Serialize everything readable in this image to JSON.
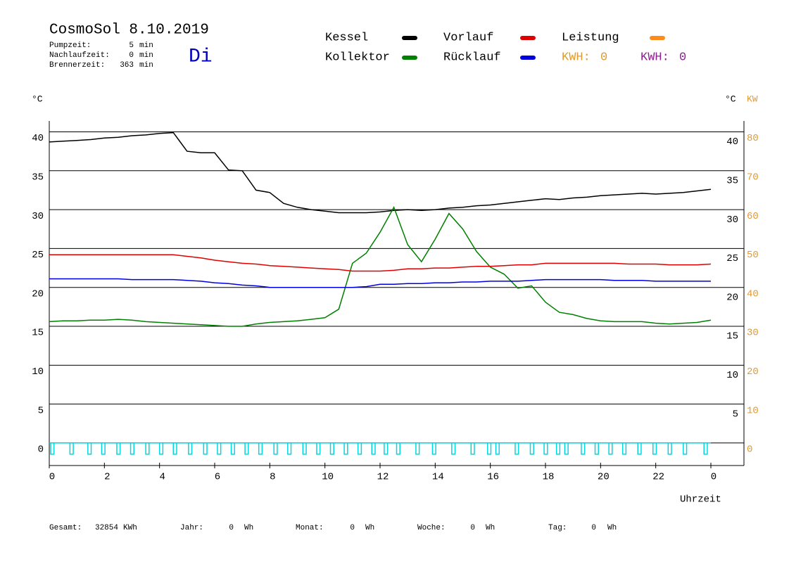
{
  "header": {
    "title": "CosmoSol 8.10.2019",
    "day": "Di",
    "info": [
      {
        "label": "Pumpzeit:",
        "value": 5,
        "unit": "min"
      },
      {
        "label": "Nachlaufzeit:",
        "value": 0,
        "unit": "min"
      },
      {
        "label": "Brennerzeit:",
        "value": 363,
        "unit": "min"
      }
    ]
  },
  "legend": {
    "extra": [
      {
        "name": "Leistung",
        "color": "#ff8c1a"
      }
    ],
    "kwh": [
      {
        "label": "KWH:",
        "value": 0,
        "color": "#e09a30"
      },
      {
        "label": "KWH:",
        "value": 0,
        "color": "#8b2090"
      }
    ]
  },
  "footer": [
    {
      "label": "Gesamt:",
      "value": 32854,
      "unit": "KWh"
    },
    {
      "label": "Jahr:",
      "value": 0,
      "unit": "Wh"
    },
    {
      "label": "Monat:",
      "value": 0,
      "unit": "Wh"
    },
    {
      "label": "Woche:",
      "value": 0,
      "unit": "Wh"
    },
    {
      "label": "Tag:",
      "value": 0,
      "unit": "Wh"
    }
  ],
  "chart_data": {
    "type": "line",
    "ylabel": "°C",
    "y2label_c": "°C",
    "y2label": "KW",
    "xlabel": "Uhrzeit",
    "grid": true,
    "x": [
      0,
      0.5,
      1,
      1.5,
      2,
      2.5,
      3,
      3.5,
      4,
      4.5,
      5,
      5.5,
      6,
      6.5,
      7,
      7.5,
      8,
      8.5,
      9,
      9.5,
      10,
      10.5,
      11,
      11.5,
      12,
      12.5,
      13,
      13.5,
      14,
      14.5,
      15,
      15.5,
      16,
      16.5,
      17,
      17.5,
      18,
      18.5,
      19,
      19.5,
      20,
      20.5,
      21,
      21.5,
      22,
      22.5,
      23,
      23.5,
      24
    ],
    "series": [
      {
        "name": "Kessel",
        "color": "#000000",
        "values": [
          38.7,
          38.8,
          38.9,
          39.0,
          39.2,
          39.3,
          39.5,
          39.6,
          39.8,
          39.9,
          37.5,
          37.3,
          37.3,
          35.1,
          35.0,
          32.5,
          32.2,
          30.8,
          30.3,
          30.0,
          29.8,
          29.6,
          29.6,
          29.6,
          29.7,
          29.9,
          30.0,
          29.9,
          30.0,
          30.2,
          30.3,
          30.5,
          30.6,
          30.8,
          31.0,
          31.2,
          31.4,
          31.3,
          31.5,
          31.6,
          31.8,
          31.9,
          32.0,
          32.1,
          32.0,
          32.1,
          32.2,
          32.4,
          32.6
        ]
      },
      {
        "name": "Kollektor",
        "color": "#008000",
        "values": [
          15.6,
          15.7,
          15.7,
          15.8,
          15.8,
          15.9,
          15.8,
          15.6,
          15.5,
          15.4,
          15.3,
          15.2,
          15.1,
          15.0,
          15.0,
          15.3,
          15.5,
          15.6,
          15.7,
          15.9,
          16.1,
          17.2,
          23.1,
          24.4,
          27.1,
          30.3,
          25.5,
          23.3,
          26.2,
          29.5,
          27.5,
          24.6,
          22.6,
          21.7,
          19.9,
          20.2,
          18.1,
          16.8,
          16.5,
          16.0,
          15.7,
          15.6,
          15.6,
          15.6,
          15.4,
          15.3,
          15.4,
          15.5,
          15.8
        ]
      },
      {
        "name": "Vorlauf",
        "color": "#e00000",
        "values": [
          24.2,
          24.2,
          24.2,
          24.2,
          24.2,
          24.2,
          24.2,
          24.2,
          24.2,
          24.2,
          24.0,
          23.8,
          23.5,
          23.3,
          23.1,
          23.0,
          22.8,
          22.7,
          22.6,
          22.5,
          22.4,
          22.3,
          22.1,
          22.1,
          22.1,
          22.2,
          22.4,
          22.4,
          22.5,
          22.5,
          22.6,
          22.7,
          22.7,
          22.8,
          22.9,
          22.9,
          23.1,
          23.1,
          23.1,
          23.1,
          23.1,
          23.1,
          23.0,
          23.0,
          23.0,
          22.9,
          22.9,
          22.9,
          23.0
        ]
      },
      {
        "name": "Rücklauf",
        "color": "#0000e0",
        "values": [
          21.1,
          21.1,
          21.1,
          21.1,
          21.1,
          21.1,
          21.0,
          21.0,
          21.0,
          21.0,
          20.9,
          20.8,
          20.6,
          20.5,
          20.3,
          20.2,
          20.0,
          20.0,
          20.0,
          20.0,
          20.0,
          20.0,
          20.0,
          20.1,
          20.4,
          20.4,
          20.5,
          20.5,
          20.6,
          20.6,
          20.7,
          20.7,
          20.8,
          20.8,
          20.8,
          20.9,
          21.0,
          21.0,
          21.0,
          21.0,
          21.0,
          20.9,
          20.9,
          20.9,
          20.8,
          20.8,
          20.8,
          20.8,
          20.8
        ]
      }
    ],
    "pump": {
      "color": "#00d8e0",
      "pulses": [
        [
          0.05,
          0.17
        ],
        [
          0.75,
          0.87
        ],
        [
          1.4,
          1.52
        ],
        [
          1.9,
          2.02
        ],
        [
          2.45,
          2.57
        ],
        [
          2.95,
          3.07
        ],
        [
          3.5,
          3.62
        ],
        [
          4.0,
          4.12
        ],
        [
          4.5,
          4.62
        ],
        [
          5.05,
          5.17
        ],
        [
          5.6,
          5.72
        ],
        [
          6.1,
          6.22
        ],
        [
          6.6,
          6.72
        ],
        [
          7.1,
          7.22
        ],
        [
          7.6,
          7.72
        ],
        [
          8.15,
          8.27
        ],
        [
          8.65,
          8.77
        ],
        [
          9.2,
          9.32
        ],
        [
          9.7,
          9.82
        ],
        [
          10.2,
          10.32
        ],
        [
          10.7,
          10.82
        ],
        [
          11.2,
          11.32
        ],
        [
          11.7,
          11.82
        ],
        [
          12.15,
          12.27
        ],
        [
          12.6,
          12.72
        ],
        [
          13.3,
          13.42
        ],
        [
          13.9,
          14.02
        ],
        [
          14.6,
          14.72
        ],
        [
          15.3,
          15.42
        ],
        [
          15.9,
          16.02
        ],
        [
          16.2,
          16.32
        ],
        [
          16.9,
          17.02
        ],
        [
          17.45,
          17.57
        ],
        [
          17.95,
          18.07
        ],
        [
          18.4,
          18.52
        ],
        [
          18.7,
          18.82
        ],
        [
          19.3,
          19.42
        ],
        [
          19.8,
          19.92
        ],
        [
          20.3,
          20.42
        ],
        [
          20.8,
          20.92
        ],
        [
          21.35,
          21.47
        ],
        [
          21.9,
          22.02
        ],
        [
          22.45,
          22.57
        ],
        [
          23.0,
          23.12
        ],
        [
          23.75,
          23.87
        ]
      ]
    },
    "xlim": [
      0,
      25.2
    ],
    "xticks": [
      0,
      2,
      4,
      6,
      8,
      10,
      12,
      14,
      16,
      18,
      20,
      22,
      {
        "value": 24,
        "label": "0"
      }
    ],
    "ylim": [
      -2.9,
      41.4
    ],
    "yticks": [
      0,
      5,
      10,
      15,
      20,
      25,
      30,
      35,
      40
    ],
    "right_yticks": [
      5,
      10,
      15,
      20,
      25,
      30,
      35,
      40
    ],
    "y2lim": [
      -5.8,
      82.8
    ],
    "y2ticks": [
      0,
      10,
      20,
      30,
      40,
      50,
      60,
      70,
      80
    ]
  }
}
